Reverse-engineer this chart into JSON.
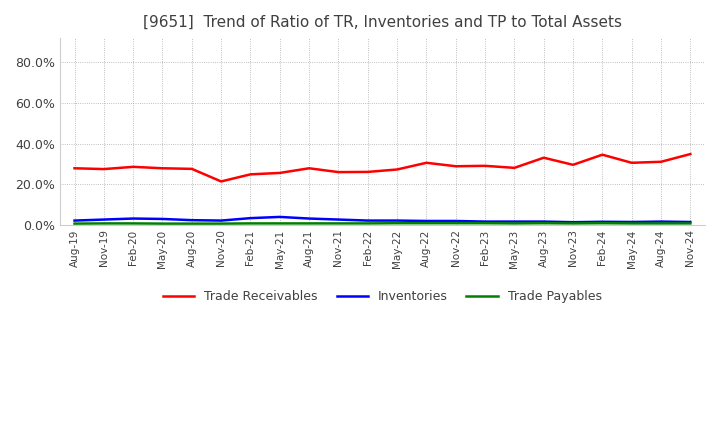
{
  "title": "[9651]  Trend of Ratio of TR, Inventories and TP to Total Assets",
  "x_labels": [
    "Aug-19",
    "Nov-19",
    "Feb-20",
    "May-20",
    "Aug-20",
    "Nov-20",
    "Feb-21",
    "May-21",
    "Aug-21",
    "Nov-21",
    "Feb-22",
    "May-22",
    "Aug-22",
    "Nov-22",
    "Feb-23",
    "May-23",
    "Aug-23",
    "Nov-23",
    "Feb-24",
    "May-24",
    "Aug-24",
    "Nov-24"
  ],
  "trade_receivables": [
    0.278,
    0.274,
    0.285,
    0.278,
    0.275,
    0.213,
    0.248,
    0.255,
    0.278,
    0.259,
    0.26,
    0.272,
    0.305,
    0.288,
    0.29,
    0.28,
    0.33,
    0.295,
    0.345,
    0.305,
    0.31,
    0.348
  ],
  "inventories": [
    0.02,
    0.025,
    0.03,
    0.028,
    0.022,
    0.02,
    0.032,
    0.038,
    0.03,
    0.025,
    0.02,
    0.02,
    0.018,
    0.018,
    0.015,
    0.015,
    0.015,
    0.012,
    0.014,
    0.013,
    0.015,
    0.013
  ],
  "trade_payables": [
    0.005,
    0.006,
    0.006,
    0.005,
    0.005,
    0.005,
    0.006,
    0.006,
    0.006,
    0.006,
    0.006,
    0.007,
    0.007,
    0.007,
    0.007,
    0.006,
    0.007,
    0.006,
    0.007,
    0.006,
    0.006,
    0.006
  ],
  "tr_color": "#FF0000",
  "inv_color": "#0000FF",
  "tp_color": "#008000",
  "ylim": [
    0.0,
    0.92
  ],
  "yticks": [
    0.0,
    0.2,
    0.4,
    0.6,
    0.8
  ],
  "background_color": "#FFFFFF",
  "plot_bg_color": "#FFFFFF",
  "grid_color": "#AAAAAA",
  "title_color": "#404040",
  "legend_labels": [
    "Trade Receivables",
    "Inventories",
    "Trade Payables"
  ]
}
